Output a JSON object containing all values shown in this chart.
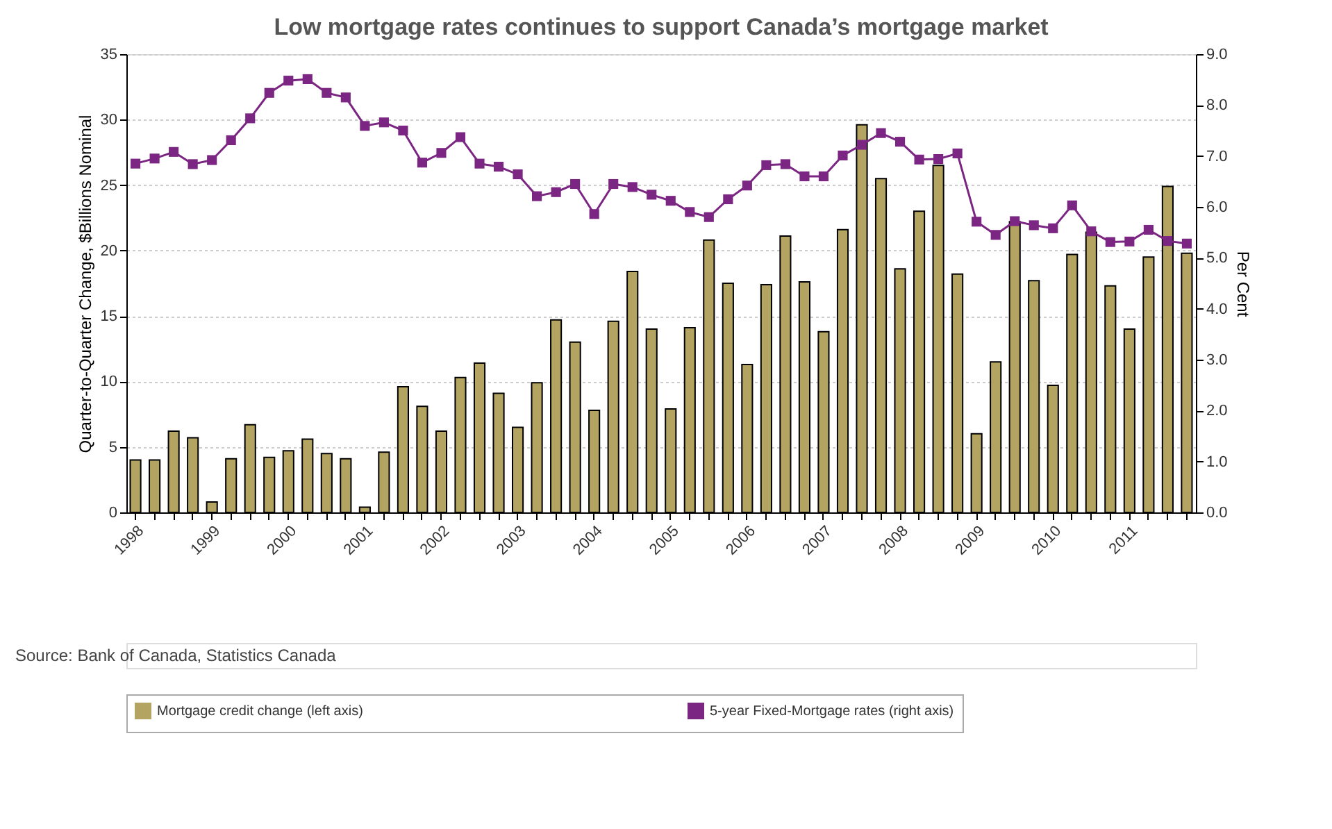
{
  "chart_data": {
    "type": "bar",
    "title": "Low mortgage rates continues to support Canada’s mortgage market",
    "ylabel": "Quarter-to-Quarter Change, $Billions Nominal",
    "y2label": "Per Cent",
    "categories": [
      "1998",
      null,
      null,
      null,
      "1999",
      null,
      null,
      null,
      "2000",
      null,
      null,
      null,
      "2001",
      null,
      null,
      null,
      "2002",
      null,
      null,
      null,
      "2003",
      null,
      null,
      null,
      "2004",
      null,
      null,
      null,
      "2005",
      null,
      null,
      null,
      "2006",
      null,
      null,
      null,
      "2007",
      null,
      null,
      null,
      "2008",
      null,
      null,
      null,
      "2009",
      null,
      null,
      null,
      "2010",
      null,
      null,
      null,
      "2011",
      null,
      null,
      null
    ],
    "series": [
      {
        "name": "Mortgage credit change (left axis)",
        "color": "#b3a462",
        "values": [
          4.0,
          4.0,
          6.2,
          5.7,
          0.8,
          4.1,
          6.7,
          4.2,
          4.7,
          5.6,
          4.5,
          4.1,
          0.4,
          4.6,
          9.6,
          8.1,
          6.2,
          10.3,
          11.4,
          9.1,
          6.5,
          9.9,
          14.7,
          13.0,
          7.8,
          14.6,
          18.4,
          14.0,
          7.9,
          14.1,
          20.8,
          17.5,
          11.3,
          17.4,
          21.1,
          17.6,
          13.8,
          21.6,
          29.6,
          25.5,
          18.6,
          23.0,
          26.5,
          18.2,
          6.0,
          11.5,
          22.2,
          17.7,
          9.7,
          19.7,
          21.4,
          17.3,
          14.0,
          19.5,
          24.9,
          19.8
        ]
      },
      {
        "name": "5-year Fixed-Mortgage rates (right axis)",
        "type": "line",
        "axis": "y2",
        "color": "#7b2682",
        "values": [
          6.85,
          6.95,
          7.08,
          6.84,
          6.92,
          7.31,
          7.74,
          8.24,
          8.48,
          8.51,
          8.24,
          8.15,
          7.59,
          7.66,
          7.5,
          6.87,
          7.06,
          7.37,
          6.85,
          6.79,
          6.64,
          6.21,
          6.29,
          6.45,
          5.86,
          6.45,
          6.39,
          6.24,
          6.12,
          5.9,
          5.8,
          6.15,
          6.42,
          6.82,
          6.84,
          6.6,
          6.6,
          7.01,
          7.22,
          7.45,
          7.28,
          6.93,
          6.94,
          7.05,
          5.71,
          5.45,
          5.72,
          5.64,
          5.58,
          6.03,
          5.52,
          5.31,
          5.32,
          5.55,
          5.33,
          5.28
        ]
      }
    ],
    "ylim": [
      0,
      35
    ],
    "yticks": [
      0,
      5,
      10,
      15,
      20,
      25,
      30,
      35
    ],
    "y2lim": [
      0,
      9
    ],
    "y2ticks": [
      {
        "value": 0,
        "label": "0.0"
      },
      {
        "value": 1,
        "label": "1.0"
      },
      {
        "value": 2,
        "label": "2.0"
      },
      {
        "value": 3,
        "label": "3.0"
      },
      {
        "value": 4,
        "label": "4.0"
      },
      {
        "value": 5,
        "label": "5.0"
      },
      {
        "value": 6,
        "label": "6.0"
      },
      {
        "value": 7,
        "label": "7.0"
      },
      {
        "value": 8,
        "label": "8.0"
      },
      {
        "value": 9,
        "label": "9.0"
      }
    ],
    "grid": "y",
    "legend": "bottom",
    "marker": "square",
    "line_style": "solid",
    "annotations": [
      "Source: Bank of Canada, Statistics Canada"
    ]
  }
}
